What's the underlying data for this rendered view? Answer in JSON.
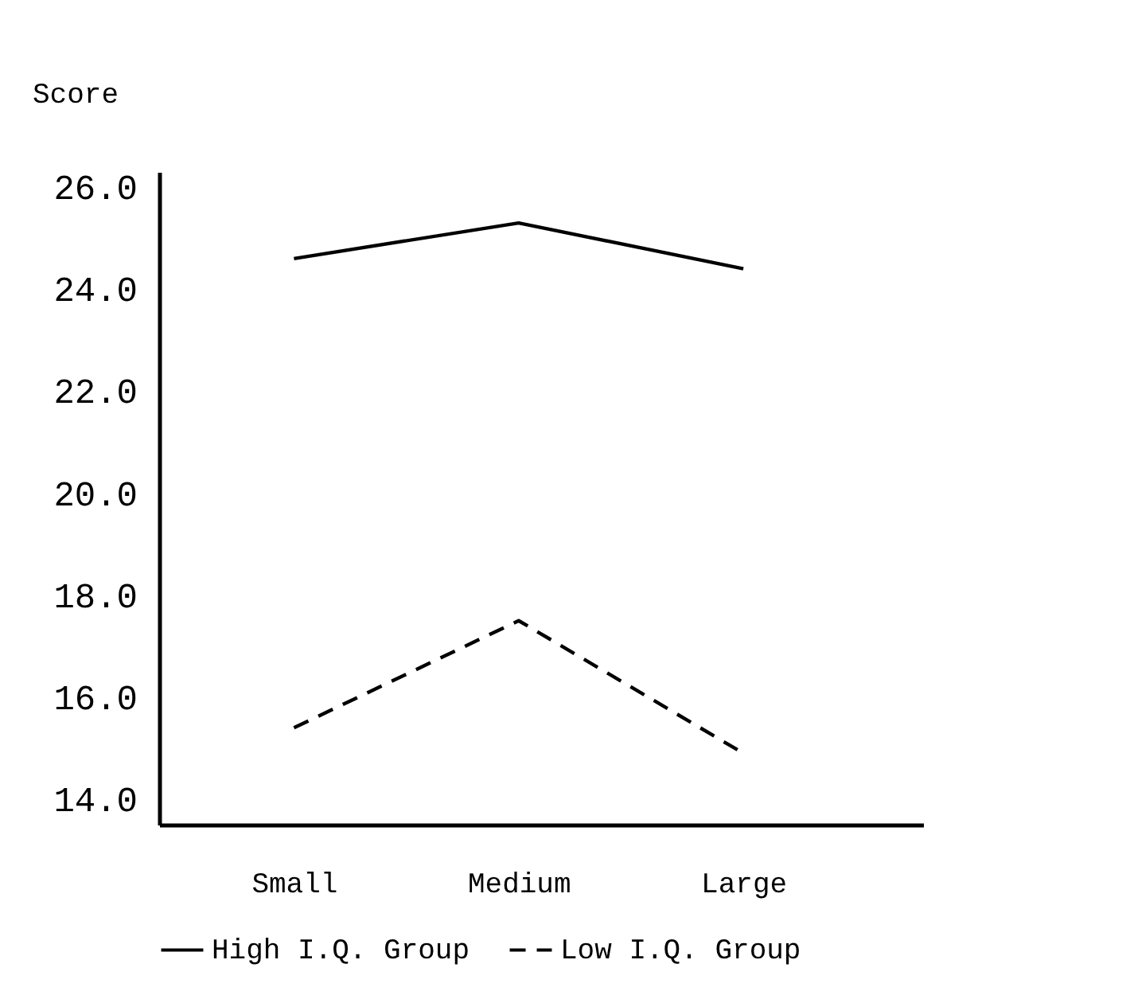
{
  "chart_data": {
    "type": "line",
    "ylabel": "Score",
    "categories": [
      "Small",
      "Medium",
      "Large"
    ],
    "series": [
      {
        "name": "High I.Q. Group",
        "color": "#000000",
        "line_style": "solid",
        "values": [
          24.6,
          25.3,
          24.4
        ]
      },
      {
        "name": "Low I.Q. Group",
        "color": "#000000",
        "line_style": "dashed",
        "values": [
          15.4,
          17.5,
          14.9
        ]
      }
    ],
    "ylim": [
      13.5,
      26.3
    ],
    "yticks": [
      {
        "value": 14,
        "label": "14.0"
      },
      {
        "value": 16,
        "label": "16.0"
      },
      {
        "value": 18,
        "label": "18.0"
      },
      {
        "value": 20,
        "label": "20.0"
      },
      {
        "value": 22,
        "label": "22.0"
      },
      {
        "value": 24,
        "label": "24.0"
      },
      {
        "value": 26,
        "label": "26.0"
      }
    ],
    "grid": false,
    "legend": "bottom"
  }
}
